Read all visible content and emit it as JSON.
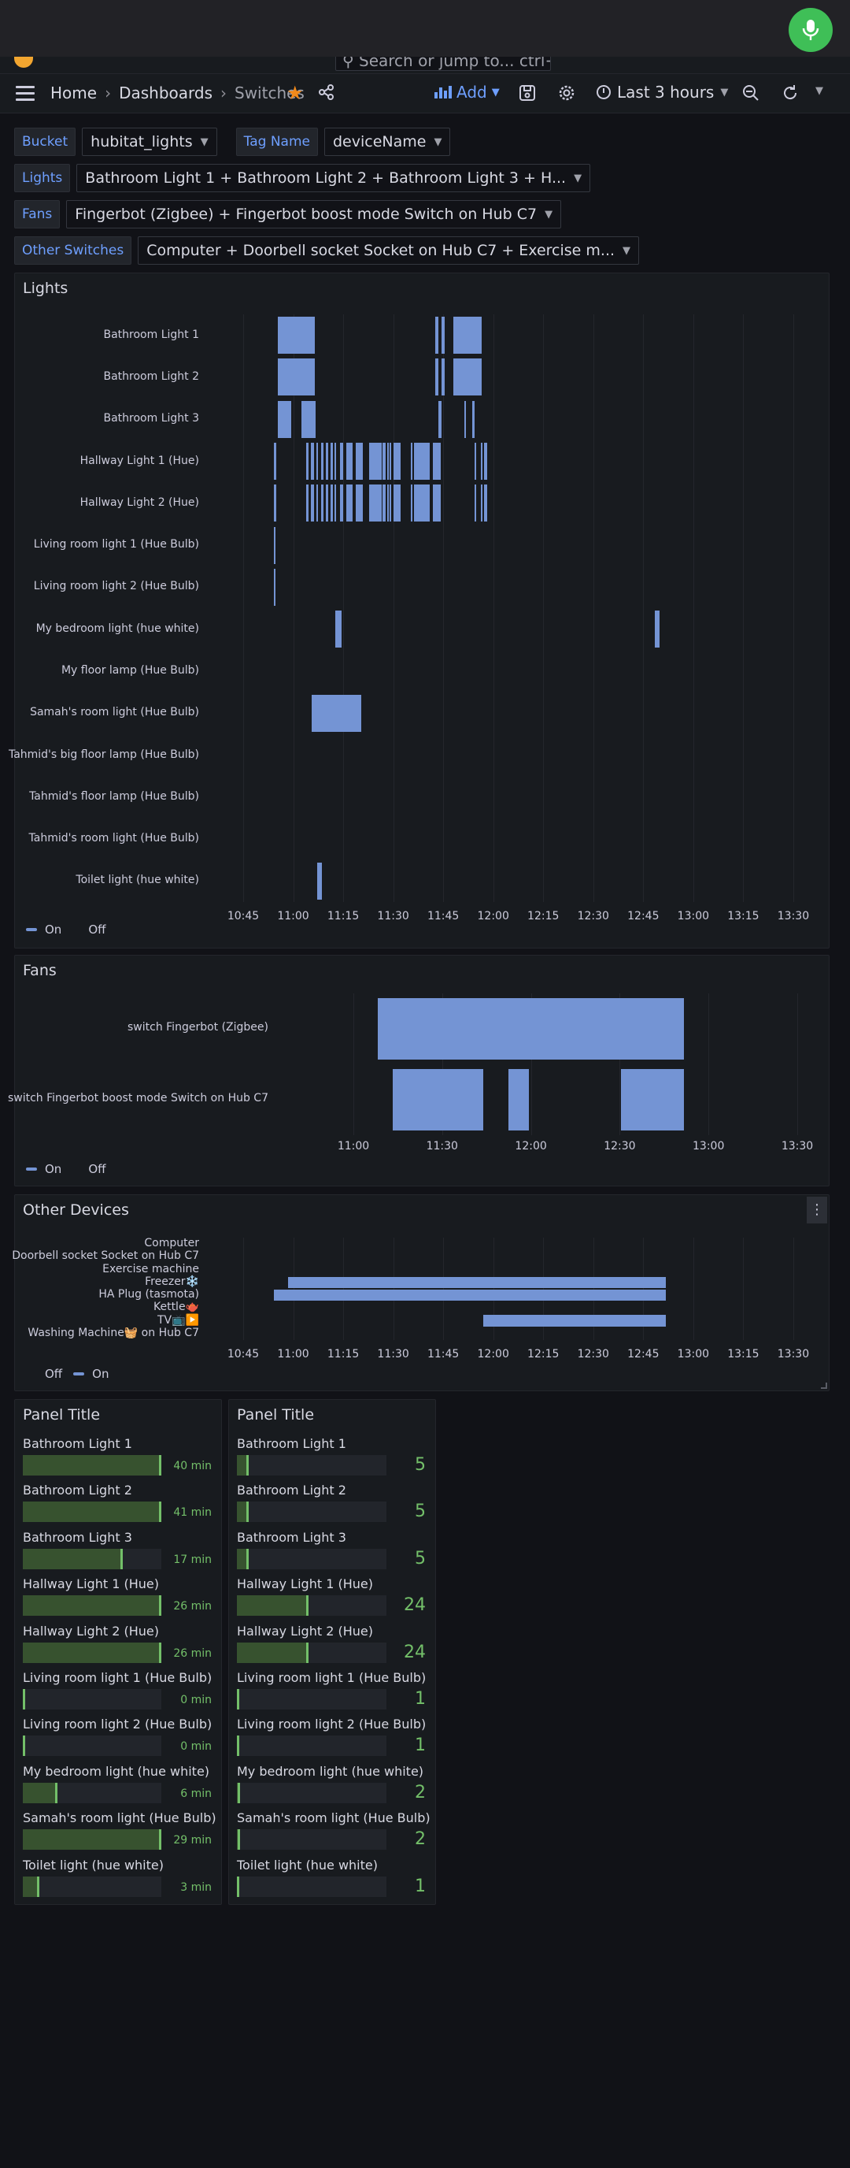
{
  "topbar": {
    "search_placeholder": "Search or jump to...  ctrl+k"
  },
  "nav": {
    "breadcrumb": [
      "Home",
      "Dashboards",
      "Switches"
    ],
    "add_label": "Add",
    "time_range": "Last 3 hours"
  },
  "variables": [
    {
      "label": "Bucket",
      "value": "hubitat_lights"
    },
    {
      "label": "Tag Name",
      "value": "deviceName"
    },
    {
      "label": "Lights",
      "value": "Bathroom Light 1 + Bathroom Light 2 + Bathroom Light 3 + H..."
    },
    {
      "label": "Fans",
      "value": "Fingerbot (Zigbee) + Fingerbot boost mode Switch on Hub C7"
    },
    {
      "label": "Other Switches",
      "value": "Computer + Doorbell socket Socket on Hub C7 + Exercise m..."
    }
  ],
  "lights_panel": {
    "title": "Lights",
    "ticks": [
      "10:45",
      "11:00",
      "11:15",
      "11:30",
      "11:45",
      "12:00",
      "12:15",
      "12:30",
      "12:45",
      "13:00",
      "13:15",
      "13:30"
    ],
    "legend": {
      "on": "On",
      "off": "Off"
    },
    "rows": [
      {
        "name": "Bathroom Light 1",
        "on": [
          [
            10.5,
            21.5
          ],
          [
            57.5,
            58.5
          ],
          [
            59.5,
            60.5
          ],
          [
            63.0,
            71.5
          ]
        ]
      },
      {
        "name": "Bathroom Light 2",
        "on": [
          [
            10.5,
            21.5
          ],
          [
            57.5,
            58.5
          ],
          [
            59.5,
            60.5
          ],
          [
            63.0,
            71.5
          ]
        ]
      },
      {
        "name": "Bathroom Light 3",
        "on": [
          [
            10.5,
            14.3
          ],
          [
            17.5,
            21.8
          ],
          [
            58.6,
            59.4
          ],
          [
            66.3,
            66.8
          ],
          [
            68.8,
            69.4
          ]
        ]
      },
      {
        "name": "Hallway Light 1 (Hue)",
        "on": [
          [
            9.3,
            9.9
          ],
          [
            18.9,
            19.5
          ],
          [
            20.2,
            21.2
          ],
          [
            21.9,
            22.4
          ],
          [
            23.3,
            24.1
          ],
          [
            24.7,
            25.6
          ],
          [
            26.1,
            26.8
          ],
          [
            27.5,
            27.9
          ],
          [
            29.1,
            29.9
          ],
          [
            30.9,
            32.8
          ],
          [
            33.8,
            35.8
          ],
          [
            37.7,
            38.0
          ],
          [
            38.2,
            41.5
          ],
          [
            41.8,
            42.8
          ],
          [
            43.2,
            43.7
          ],
          [
            43.9,
            44.5
          ],
          [
            45.1,
            47.3
          ],
          [
            50.4,
            50.8
          ],
          [
            51.2,
            56.0
          ],
          [
            56.8,
            59.3
          ],
          [
            69.3,
            69.7
          ],
          [
            71.4,
            71.8
          ],
          [
            72.2,
            73.3
          ]
        ]
      },
      {
        "name": "Hallway Light 2 (Hue)",
        "on": [
          [
            9.3,
            9.9
          ],
          [
            18.9,
            19.5
          ],
          [
            20.2,
            21.2
          ],
          [
            21.9,
            22.4
          ],
          [
            23.3,
            24.1
          ],
          [
            24.7,
            25.6
          ],
          [
            26.1,
            26.8
          ],
          [
            27.5,
            27.9
          ],
          [
            29.1,
            29.9
          ],
          [
            30.9,
            32.8
          ],
          [
            33.8,
            35.8
          ],
          [
            37.7,
            38.0
          ],
          [
            38.2,
            41.5
          ],
          [
            41.8,
            42.8
          ],
          [
            43.2,
            43.7
          ],
          [
            43.9,
            44.5
          ],
          [
            45.1,
            47.3
          ],
          [
            50.4,
            50.8
          ],
          [
            51.2,
            56.0
          ],
          [
            56.8,
            59.3
          ],
          [
            69.3,
            69.7
          ],
          [
            71.4,
            71.8
          ],
          [
            72.2,
            73.3
          ]
        ]
      },
      {
        "name": "Living room light 1 (Hue Bulb)",
        "on": [
          [
            9.3,
            9.6
          ]
        ]
      },
      {
        "name": "Living room light 2 (Hue Bulb)",
        "on": [
          [
            9.3,
            9.6
          ]
        ]
      },
      {
        "name": "My bedroom light (hue white)",
        "on": [
          [
            27.6,
            29.6
          ],
          [
            123.4,
            125.0
          ]
        ]
      },
      {
        "name": "My floor lamp (Hue Bulb)",
        "on": []
      },
      {
        "name": "Samah's room light (Hue Bulb)",
        "on": [
          [
            20.5,
            35.3
          ]
        ]
      },
      {
        "name": "Tahmid's big floor lamp (Hue Bulb)",
        "on": []
      },
      {
        "name": "Tahmid's floor lamp (Hue Bulb)",
        "on": []
      },
      {
        "name": "Tahmid's room light (Hue Bulb)",
        "on": []
      },
      {
        "name": "Toilet light (hue white)",
        "on": [
          [
            22.1,
            23.5
          ]
        ]
      }
    ]
  },
  "fans_panel": {
    "title": "Fans",
    "ticks": [
      "11:00",
      "11:30",
      "12:00",
      "12:30",
      "13:00",
      "13:30"
    ],
    "legend": {
      "on": "On",
      "off": "Off"
    },
    "rows": [
      {
        "name": "switch Fingerbot (Zigbee)",
        "on": [
          [
            23.2,
            126.8
          ]
        ]
      },
      {
        "name": "switch Fingerbot boost mode Switch on Hub C7",
        "on": [
          [
            28.3,
            58.8
          ],
          [
            67.3,
            74.3
          ],
          [
            105.3,
            126.8
          ]
        ]
      }
    ]
  },
  "other_panel": {
    "title": "Other Devices",
    "ticks": [
      "10:45",
      "11:00",
      "11:15",
      "11:30",
      "11:45",
      "12:00",
      "12:15",
      "12:30",
      "12:45",
      "13:00",
      "13:15",
      "13:30"
    ],
    "legend": {
      "off": "Off",
      "on": "On"
    },
    "rows": [
      {
        "name": "Computer",
        "on": []
      },
      {
        "name": "Doorbell socket Socket on Hub C7",
        "on": []
      },
      {
        "name": "Exercise machine",
        "on": []
      },
      {
        "name": "Freezer❄️",
        "on": [
          [
            13.5,
            126.8
          ]
        ]
      },
      {
        "name": "HA Plug (tasmota)",
        "on": [
          [
            9.3,
            126.8
          ]
        ]
      },
      {
        "name": "Kettle🫖",
        "on": []
      },
      {
        "name": "TV📺▶️",
        "on": [
          [
            72.0,
            126.8
          ]
        ]
      },
      {
        "name": "Washing Machine🧺 on Hub C7",
        "on": []
      }
    ]
  },
  "duration_panel": {
    "title": "Panel Title",
    "items": [
      {
        "name": "Bathroom Light 1",
        "value": "40 min",
        "fraction": 1.0
      },
      {
        "name": "Bathroom Light 2",
        "value": "41 min",
        "fraction": 1.0
      },
      {
        "name": "Bathroom Light 3",
        "value": "17 min",
        "fraction": 0.72
      },
      {
        "name": "Hallway Light 1 (Hue)",
        "value": "26 min",
        "fraction": 1.0
      },
      {
        "name": "Hallway Light 2 (Hue)",
        "value": "26 min",
        "fraction": 1.0
      },
      {
        "name": "Living room light 1 (Hue Bulb)",
        "value": "0 min",
        "fraction": 0.0
      },
      {
        "name": "Living room light 2 (Hue Bulb)",
        "value": "0 min",
        "fraction": 0.0
      },
      {
        "name": "My bedroom light (hue white)",
        "value": "6 min",
        "fraction": 0.25
      },
      {
        "name": "Samah's room light (Hue Bulb)",
        "value": "29 min",
        "fraction": 1.0
      },
      {
        "name": "Toilet light (hue white)",
        "value": "3 min",
        "fraction": 0.12
      }
    ]
  },
  "count_panel": {
    "title": "Panel Title",
    "items": [
      {
        "name": "Bathroom Light 1",
        "value": "5",
        "fraction": 0.08
      },
      {
        "name": "Bathroom Light 2",
        "value": "5",
        "fraction": 0.08
      },
      {
        "name": "Bathroom Light 3",
        "value": "5",
        "fraction": 0.08
      },
      {
        "name": "Hallway Light 1 (Hue)",
        "value": "24",
        "fraction": 0.48
      },
      {
        "name": "Hallway Light 2 (Hue)",
        "value": "24",
        "fraction": 0.48
      },
      {
        "name": "Living room light 1 (Hue Bulb)",
        "value": "1",
        "fraction": 0.0
      },
      {
        "name": "Living room light 2 (Hue Bulb)",
        "value": "1",
        "fraction": 0.0
      },
      {
        "name": "My bedroom light (hue white)",
        "value": "2",
        "fraction": 0.02
      },
      {
        "name": "Samah's room light (Hue Bulb)",
        "value": "2",
        "fraction": 0.02
      },
      {
        "name": "Toilet light (hue white)",
        "value": "1",
        "fraction": 0.0
      }
    ]
  },
  "colors": {
    "on": "#7494d4",
    "gauge_fill": "#37522f",
    "gauge_edge": "#73bf69",
    "accent": "#6e9fff"
  }
}
